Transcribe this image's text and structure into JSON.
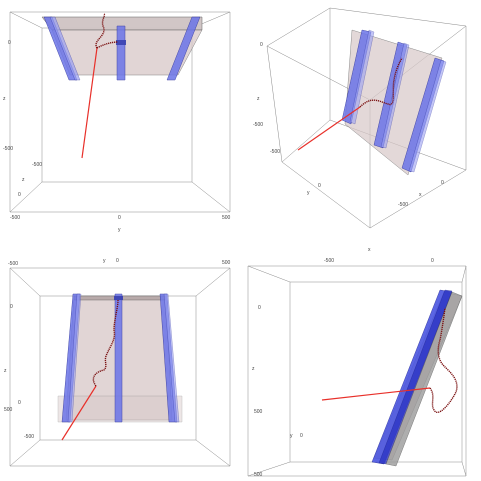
{
  "colors": {
    "box_edge": "#8a8a8a",
    "slab_fill": "#d8c8c8",
    "slab_edge": "#5a5a5a",
    "rail_fill": "#6b74e8",
    "rail_edge": "#2a2f9a",
    "trajectory": "#e8302a",
    "trajectory_dots": "#6b1010"
  },
  "views": [
    {
      "id": "view-top-left",
      "tick_labels": {
        "x_left": "-500",
        "x_mid": "0",
        "x_right": "500",
        "x_axis_name": "y",
        "left_0": "0",
        "left_axis": "z",
        "left_m500": "-500",
        "diag_m500": "-500",
        "diag_axis": "z",
        "diag_0": "0"
      }
    },
    {
      "id": "view-top-right",
      "tick_labels": {
        "left_0": "0",
        "left_axis": "z",
        "left_m500": "-500",
        "bottom_m500": "-500",
        "bottom_axis": "y",
        "bottom_0": "0",
        "right_0": "0",
        "right_axis": "x",
        "right_m500": "-500",
        "below": "x"
      }
    },
    {
      "id": "view-bottom-left",
      "tick_labels": {
        "top_m500": "-500",
        "top_axis": "y",
        "top_0": "0",
        "top_500": "500",
        "left_0": "0",
        "left_axis": "z",
        "left_500": "500",
        "diag_m500": "-500",
        "diag_0": "0"
      }
    },
    {
      "id": "view-bottom-right",
      "tick_labels": {
        "top_m500": "-500",
        "top_0": "0",
        "left_0": "0",
        "left_axis": "z",
        "left_500": "500",
        "diag_axis": "y",
        "diag_0": "0",
        "left_bottom": "500"
      }
    }
  ]
}
